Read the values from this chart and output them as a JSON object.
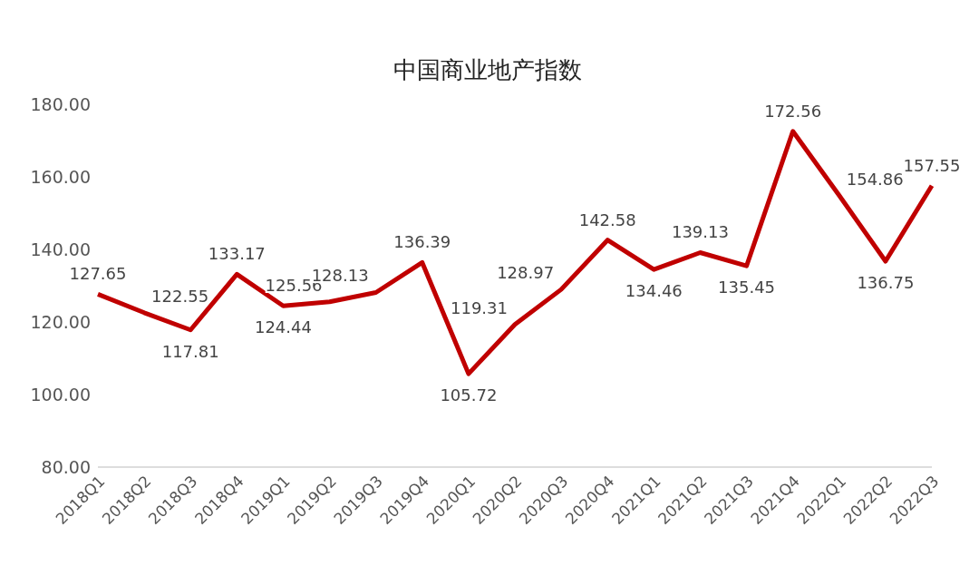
{
  "chart_data": {
    "type": "line",
    "title": "中国商业地产指数",
    "categories": [
      "2018Q1",
      "2018Q2",
      "2018Q3",
      "2018Q4",
      "2019Q1",
      "2019Q2",
      "2019Q3",
      "2019Q4",
      "2020Q1",
      "2020Q2",
      "2020Q3",
      "2020Q4",
      "2021Q1",
      "2021Q2",
      "2021Q3",
      "2021Q4",
      "2022Q1",
      "2022Q2",
      "2022Q3"
    ],
    "series": [
      {
        "color": "#c00000",
        "values": [
          127.65,
          122.55,
          117.81,
          133.17,
          124.44,
          125.56,
          128.13,
          136.39,
          105.72,
          119.31,
          128.97,
          142.58,
          134.46,
          139.13,
          135.45,
          172.56,
          154.86,
          136.75,
          157.55
        ]
      }
    ],
    "ylim": [
      80,
      180
    ],
    "yticks": [
      {
        "value": 80,
        "label": "80.00"
      },
      {
        "value": 100,
        "label": "100.00"
      },
      {
        "value": 120,
        "label": "120.00"
      },
      {
        "value": 140,
        "label": "140.00"
      },
      {
        "value": 160,
        "label": "160.00"
      },
      {
        "value": 180,
        "label": "180.00"
      }
    ],
    "grid": false,
    "legend": false,
    "marker": "none",
    "line_style": "solid",
    "data_labels": true
  }
}
